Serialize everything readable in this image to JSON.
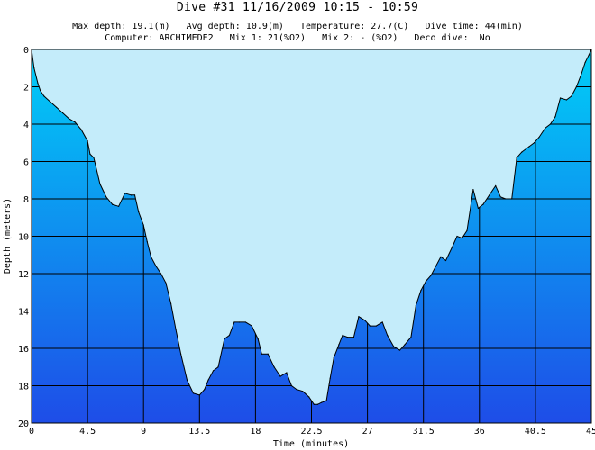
{
  "header": {
    "title": "Dive #31  11/16/2009  10:15 - 10:59",
    "line1": "Max depth: 19.1(m)   Avg depth: 10.9(m)   Temperature: 27.7(C)   Dive time: 44(min)",
    "line2": "Computer: ARCHIMEDE2   Mix 1: 21(%O2)   Mix 2: - (%O2)   Deco dive:  No"
  },
  "colors": {
    "sky": "#c4ecfa",
    "gradient_top": "#00cff7",
    "gradient_bottom": "#1e4de8",
    "line": "#000000"
  },
  "chart_data": {
    "type": "area",
    "title": "",
    "xlabel": "Time (minutes)",
    "ylabel": "Depth (meters)",
    "xlim": [
      0,
      45
    ],
    "ylim": [
      0,
      20
    ],
    "y_inverted": true,
    "grid": true,
    "x_ticks": [
      0,
      4.5,
      9,
      13.5,
      18,
      22.5,
      27,
      31.5,
      36,
      40.5,
      45
    ],
    "y_ticks": [
      0,
      2,
      4,
      6,
      8,
      10,
      12,
      14,
      16,
      18,
      20
    ],
    "x_tick_labels": [
      "0",
      "4.5",
      "9",
      "13.5",
      "18",
      "22.5",
      "27",
      "31.5",
      "36",
      "40.5",
      "45"
    ],
    "y_tick_labels": [
      "0",
      "2",
      "4",
      "6",
      "8",
      "10",
      "12",
      "14",
      "16",
      "18",
      "20"
    ],
    "series": [
      {
        "x": [
          0,
          0.2,
          0.5,
          0.7,
          1.0,
          1.5,
          2.0,
          2.5,
          3.0,
          3.5,
          4.0,
          4.5,
          4.7,
          5.0,
          5.5,
          6.0,
          6.5,
          7.0,
          7.5,
          8.0,
          8.3,
          8.6,
          9.0,
          9.3,
          9.6,
          10.0,
          10.4,
          10.8,
          11.2,
          11.6,
          12.0,
          12.5,
          13.0,
          13.5,
          13.9,
          14.2,
          14.6,
          15.0,
          15.5,
          15.9,
          16.3,
          16.7,
          17.2,
          17.7,
          18.2,
          18.5,
          19.0,
          19.5,
          20.0,
          20.5,
          20.9,
          21.3,
          21.8,
          22.3,
          22.7,
          23.0,
          23.3,
          23.7,
          24.0,
          24.3,
          24.7,
          25.0,
          25.4,
          25.9,
          26.3,
          26.8,
          27.2,
          27.7,
          28.2,
          28.6,
          29.1,
          29.6,
          30.0,
          30.5,
          30.9,
          31.3,
          31.7,
          32.1,
          32.5,
          32.9,
          33.3,
          33.8,
          34.2,
          34.6,
          35.0,
          35.5,
          35.9,
          36.3,
          36.8,
          37.3,
          37.7,
          38.1,
          38.6,
          39.0,
          39.4,
          40.0,
          40.4,
          40.8,
          41.3,
          41.7,
          42.1,
          42.5,
          43.0,
          43.4,
          43.8,
          44.2,
          44.5,
          44.8,
          45.0
        ],
        "y": [
          0,
          1.0,
          1.8,
          2.2,
          2.5,
          2.8,
          3.1,
          3.4,
          3.7,
          3.9,
          4.3,
          4.9,
          5.6,
          5.8,
          7.2,
          7.9,
          8.3,
          8.4,
          7.7,
          7.8,
          7.8,
          8.7,
          9.4,
          10.3,
          11.1,
          11.6,
          12.0,
          12.5,
          13.6,
          15.0,
          16.3,
          17.7,
          18.4,
          18.5,
          18.2,
          17.7,
          17.2,
          17.0,
          15.5,
          15.3,
          14.6,
          14.6,
          14.6,
          14.8,
          15.5,
          16.3,
          16.3,
          17.0,
          17.5,
          17.3,
          18.0,
          18.2,
          18.3,
          18.6,
          19.0,
          19.0,
          18.9,
          18.8,
          17.6,
          16.5,
          15.8,
          15.3,
          15.4,
          15.4,
          14.3,
          14.5,
          14.8,
          14.8,
          14.6,
          15.3,
          15.9,
          16.1,
          15.8,
          15.4,
          13.7,
          12.9,
          12.4,
          12.1,
          11.6,
          11.1,
          11.3,
          10.6,
          10.0,
          10.1,
          9.7,
          7.5,
          8.5,
          8.3,
          7.8,
          7.3,
          7.9,
          8.0,
          8.0,
          5.8,
          5.5,
          5.2,
          5.0,
          4.7,
          4.2,
          4.0,
          3.6,
          2.6,
          2.7,
          2.5,
          2.0,
          1.3,
          0.7,
          0.3,
          0
        ]
      }
    ]
  }
}
